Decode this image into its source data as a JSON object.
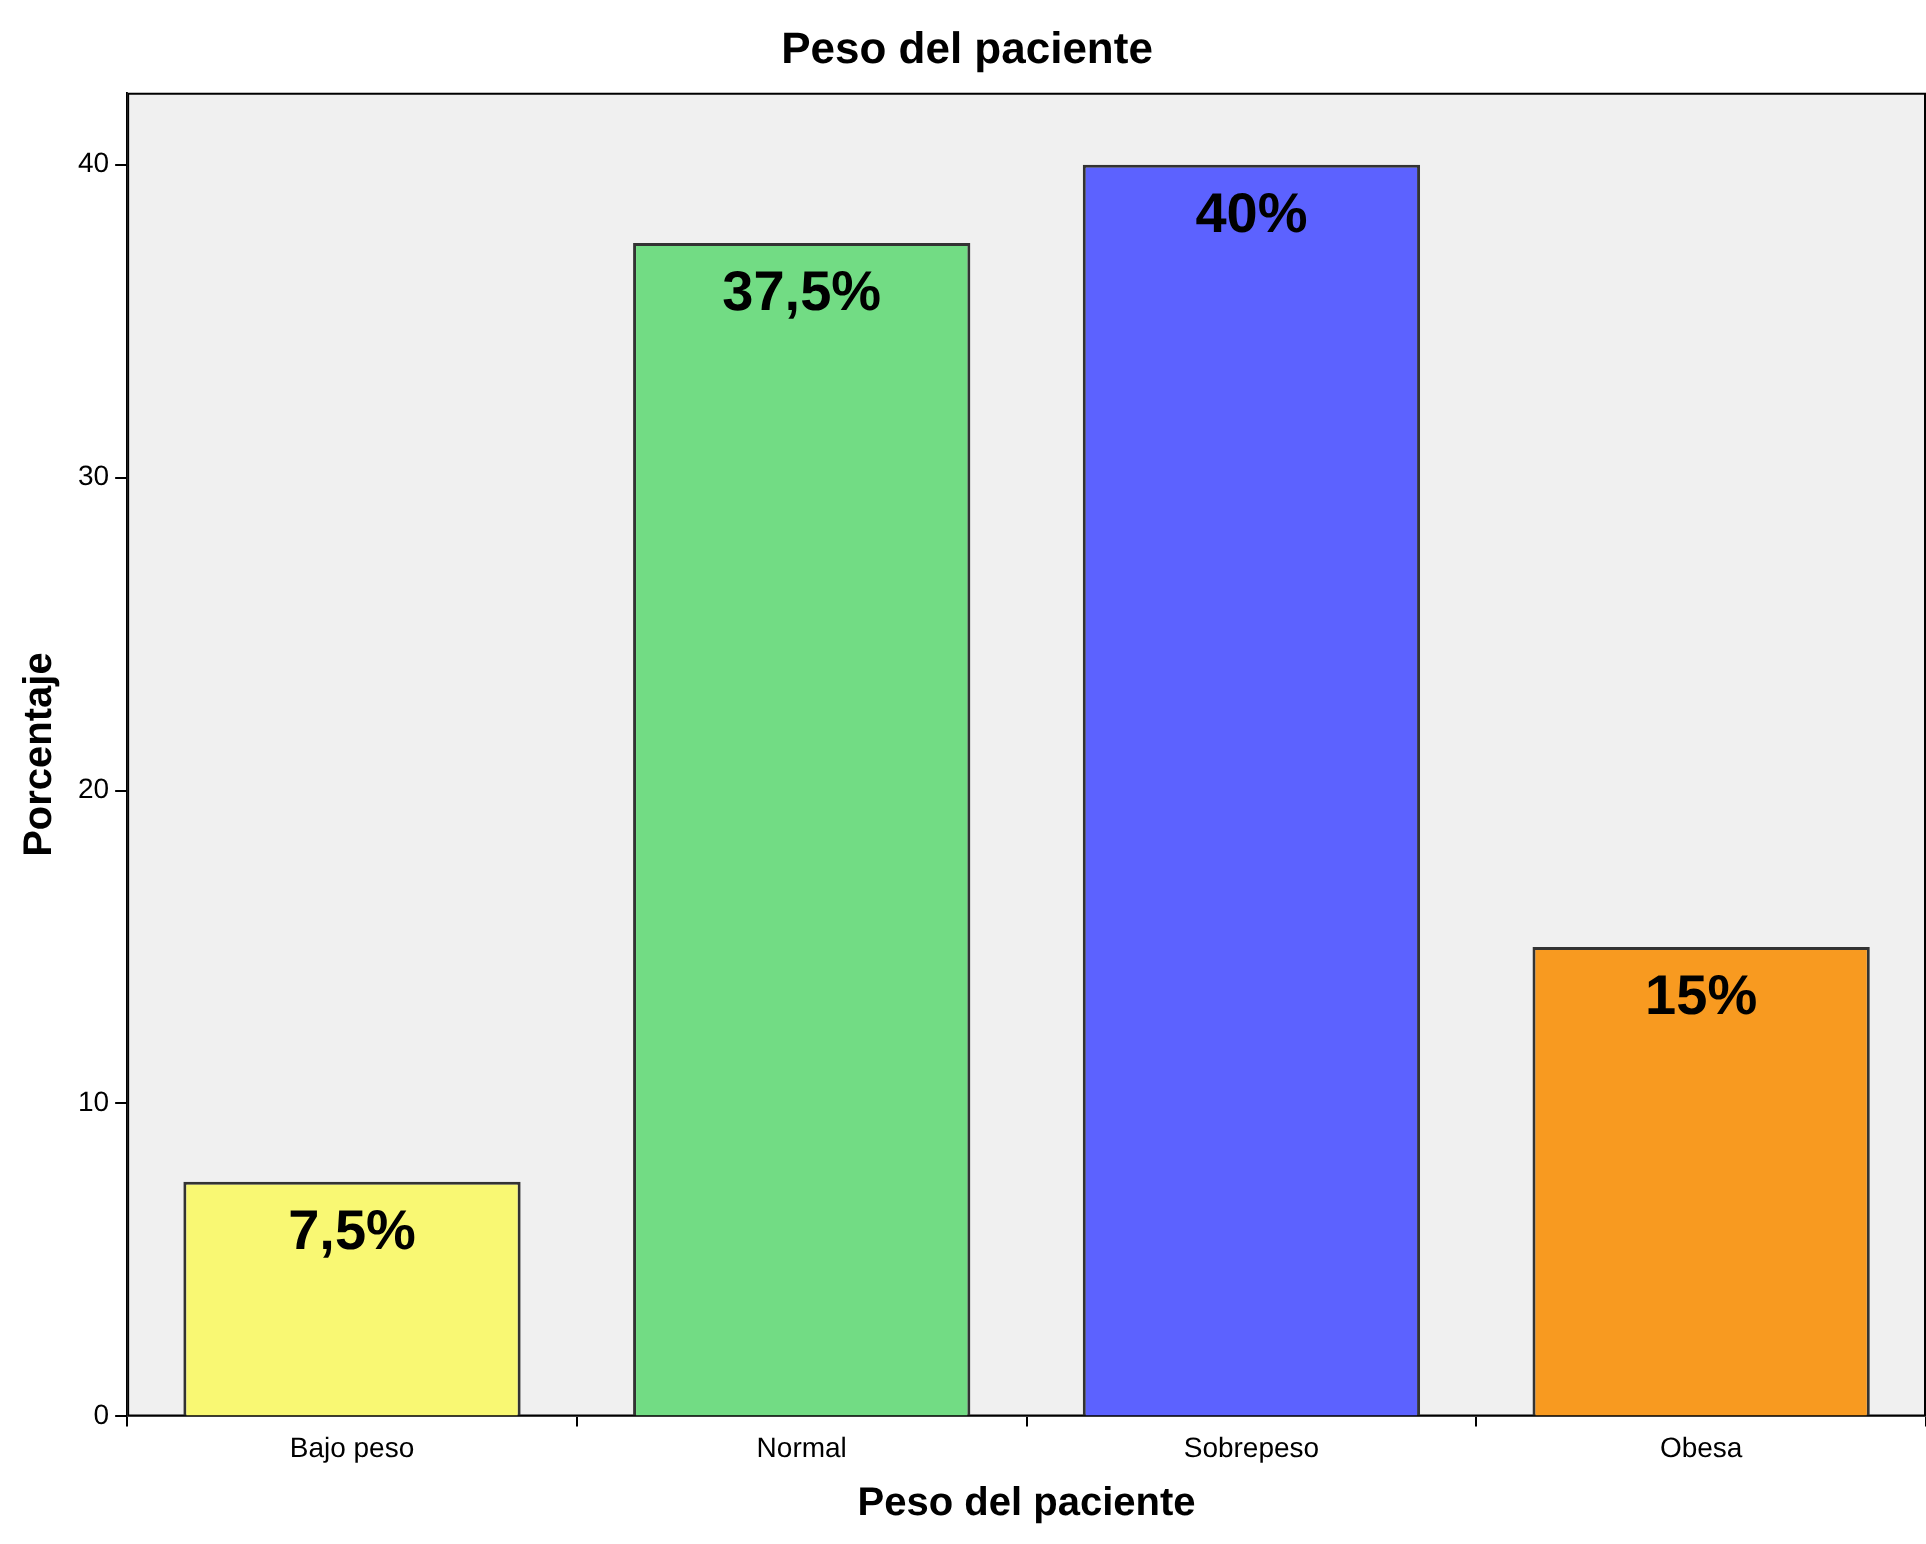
{
  "chart_data": {
    "type": "bar",
    "title": "Peso del paciente",
    "xlabel": "Peso del paciente",
    "ylabel": "Porcentaje",
    "categories": [
      "Bajo peso",
      "Normal",
      "Sobrepeso",
      "Obesa"
    ],
    "values": [
      7.5,
      37.5,
      40,
      15
    ],
    "colors": [
      "#f9f873",
      "#72dc84",
      "#5c62ff",
      "#f89a20"
    ],
    "value_labels": [
      "7,5%",
      "37,5%",
      "40%",
      "15%"
    ],
    "ylim": [
      0,
      42.3
    ],
    "yticks": [
      0,
      10,
      20,
      30,
      40
    ],
    "grid": false,
    "legend": false
  }
}
